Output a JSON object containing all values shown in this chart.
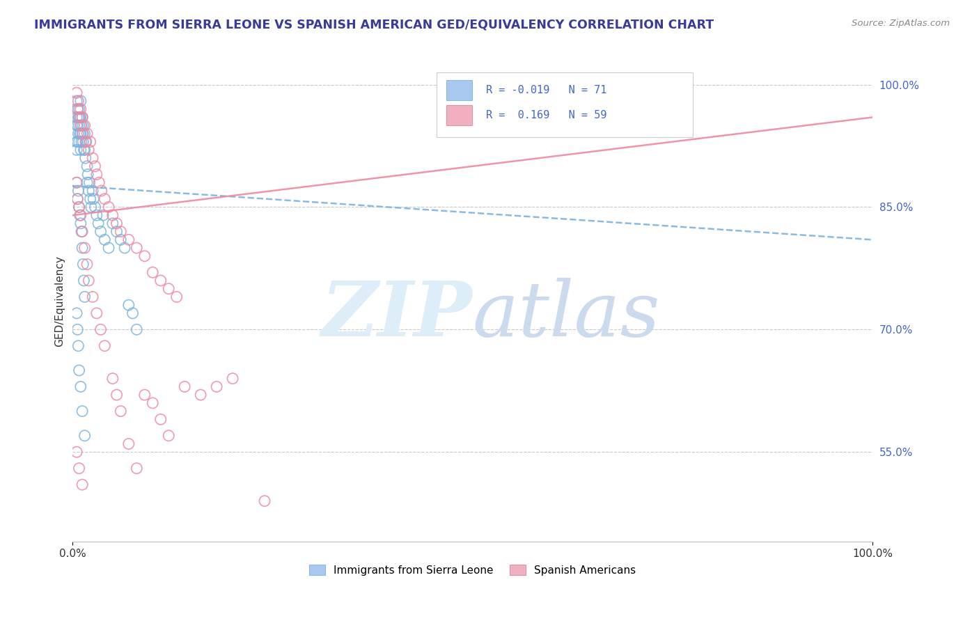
{
  "title": "IMMIGRANTS FROM SIERRA LEONE VS SPANISH AMERICAN GED/EQUIVALENCY CORRELATION CHART",
  "source_text": "Source: ZipAtlas.com",
  "ylabel": "GED/Equivalency",
  "xlim": [
    0.0,
    1.0
  ],
  "ylim": [
    0.44,
    1.03
  ],
  "y_tick_values": [
    0.55,
    0.7,
    0.85,
    1.0
  ],
  "y_tick_labels": [
    "55.0%",
    "70.0%",
    "85.0%",
    "100.0%"
  ],
  "x_tick_labels": [
    "0.0%",
    "100.0%"
  ],
  "blue_color": "#7ab4e0",
  "pink_color": "#f088a0",
  "blue_fill": "#a8c8f0",
  "pink_fill": "#f0b0c0",
  "watermark_zip_color": "#d5e8f8",
  "watermark_atlas_color": "#c8d8ee",
  "title_color": "#3a3a9a",
  "axis_label_color": "#4466cc",
  "r_blue": -0.019,
  "n_blue": 71,
  "r_pink": 0.169,
  "n_pink": 59,
  "blue_line_start_y": 0.876,
  "blue_line_end_y": 0.81,
  "pink_line_start_y": 0.84,
  "pink_line_end_y": 0.96,
  "blue_x": [
    0.005,
    0.005,
    0.005,
    0.005,
    0.005,
    0.006,
    0.006,
    0.006,
    0.007,
    0.007,
    0.008,
    0.008,
    0.008,
    0.009,
    0.009,
    0.01,
    0.01,
    0.01,
    0.01,
    0.011,
    0.011,
    0.012,
    0.012,
    0.013,
    0.013,
    0.014,
    0.015,
    0.015,
    0.016,
    0.017,
    0.018,
    0.018,
    0.019,
    0.02,
    0.021,
    0.022,
    0.023,
    0.025,
    0.026,
    0.028,
    0.03,
    0.032,
    0.035,
    0.038,
    0.04,
    0.045,
    0.05,
    0.055,
    0.06,
    0.065,
    0.07,
    0.075,
    0.08,
    0.005,
    0.006,
    0.007,
    0.008,
    0.009,
    0.01,
    0.011,
    0.012,
    0.013,
    0.014,
    0.015,
    0.005,
    0.006,
    0.007,
    0.008,
    0.01,
    0.012,
    0.015
  ],
  "blue_y": [
    0.98,
    0.96,
    0.95,
    0.93,
    0.92,
    0.97,
    0.95,
    0.93,
    0.96,
    0.94,
    0.97,
    0.95,
    0.93,
    0.96,
    0.94,
    0.98,
    0.96,
    0.94,
    0.92,
    0.95,
    0.93,
    0.96,
    0.94,
    0.95,
    0.93,
    0.92,
    0.94,
    0.92,
    0.91,
    0.93,
    0.9,
    0.88,
    0.89,
    0.87,
    0.88,
    0.86,
    0.85,
    0.87,
    0.86,
    0.85,
    0.84,
    0.83,
    0.82,
    0.84,
    0.81,
    0.8,
    0.83,
    0.82,
    0.81,
    0.8,
    0.73,
    0.72,
    0.7,
    0.88,
    0.86,
    0.87,
    0.85,
    0.84,
    0.83,
    0.82,
    0.8,
    0.78,
    0.76,
    0.74,
    0.72,
    0.7,
    0.68,
    0.65,
    0.63,
    0.6,
    0.57
  ],
  "pink_x": [
    0.005,
    0.006,
    0.007,
    0.008,
    0.01,
    0.01,
    0.012,
    0.013,
    0.015,
    0.016,
    0.018,
    0.02,
    0.022,
    0.025,
    0.028,
    0.03,
    0.033,
    0.036,
    0.04,
    0.045,
    0.05,
    0.055,
    0.06,
    0.07,
    0.08,
    0.09,
    0.1,
    0.11,
    0.12,
    0.13,
    0.005,
    0.006,
    0.008,
    0.01,
    0.012,
    0.015,
    0.018,
    0.02,
    0.025,
    0.03,
    0.035,
    0.04,
    0.05,
    0.055,
    0.06,
    0.07,
    0.08,
    0.09,
    0.1,
    0.11,
    0.12,
    0.14,
    0.16,
    0.18,
    0.2,
    0.24,
    0.005,
    0.008,
    0.012
  ],
  "pink_y": [
    0.99,
    0.97,
    0.98,
    0.96,
    0.97,
    0.95,
    0.96,
    0.94,
    0.95,
    0.93,
    0.94,
    0.92,
    0.93,
    0.91,
    0.9,
    0.89,
    0.88,
    0.87,
    0.86,
    0.85,
    0.84,
    0.83,
    0.82,
    0.81,
    0.8,
    0.79,
    0.77,
    0.76,
    0.75,
    0.74,
    0.88,
    0.86,
    0.85,
    0.84,
    0.82,
    0.8,
    0.78,
    0.76,
    0.74,
    0.72,
    0.7,
    0.68,
    0.64,
    0.62,
    0.6,
    0.56,
    0.53,
    0.62,
    0.61,
    0.59,
    0.57,
    0.63,
    0.62,
    0.63,
    0.64,
    0.49,
    0.55,
    0.53,
    0.51
  ]
}
